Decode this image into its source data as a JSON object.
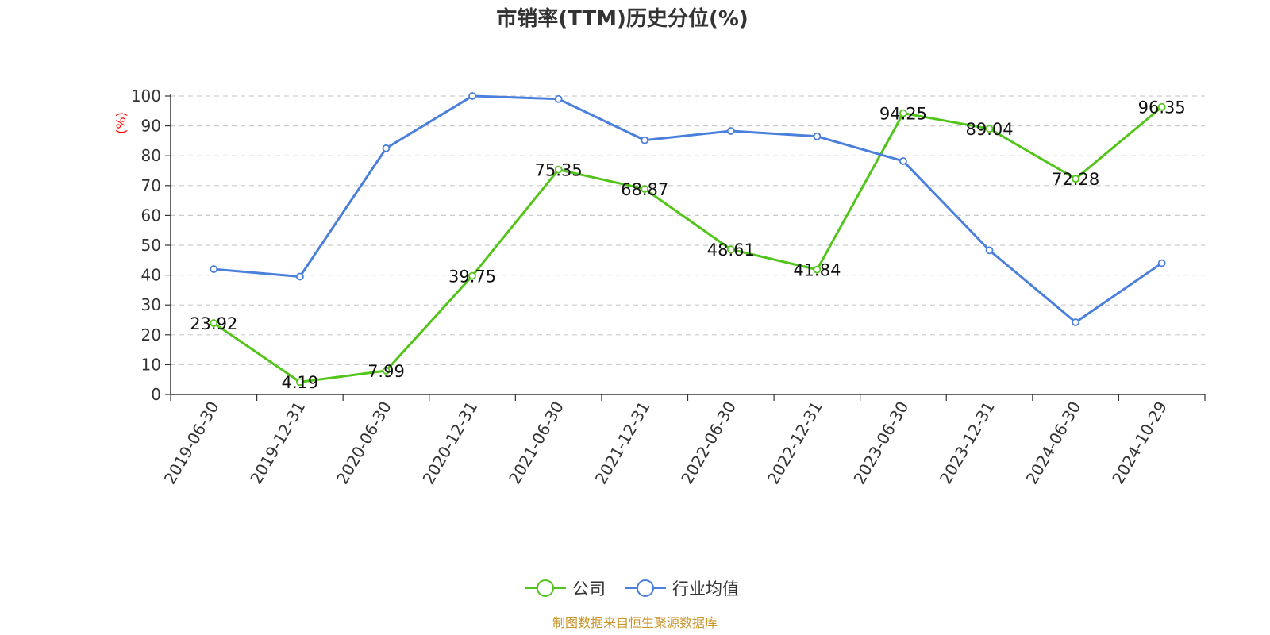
{
  "chart_data": {
    "type": "line",
    "title": "市销率(TTM)历史分位(%)",
    "ylabel": "(%)",
    "ylim": [
      0,
      100
    ],
    "yticks": [
      0,
      10,
      20,
      30,
      40,
      50,
      60,
      70,
      80,
      90,
      100
    ],
    "grid": true,
    "legend_position": "bottom",
    "categories": [
      "2019-06-30",
      "2019-12-31",
      "2020-06-30",
      "2020-12-31",
      "2021-06-30",
      "2021-12-31",
      "2022-06-30",
      "2022-12-31",
      "2023-06-30",
      "2023-12-31",
      "2024-06-30",
      "2024-10-29"
    ],
    "series": [
      {
        "name": "公司",
        "color": "#52c41a",
        "show_labels": true,
        "values": [
          23.92,
          4.19,
          7.99,
          39.75,
          75.35,
          68.87,
          48.61,
          41.84,
          94.25,
          89.04,
          72.28,
          96.35
        ]
      },
      {
        "name": "行业均值",
        "color": "#4a7fdc",
        "show_labels": false,
        "values": [
          42,
          39.5,
          82.5,
          100,
          99,
          85.2,
          88.3,
          86.5,
          78.2,
          48.3,
          24.2,
          44
        ]
      }
    ],
    "source": "制图数据来自恒生聚源数据库"
  }
}
